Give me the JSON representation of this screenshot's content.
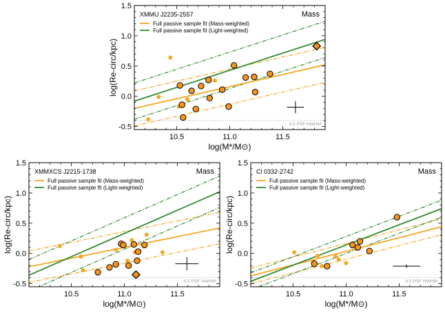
{
  "colors": {
    "mass": "#F5A623",
    "light": "#2E8B2E",
    "marker_fill": "#F7941D",
    "psf_line": "#bbbbbb"
  },
  "chart_data": [
    {
      "type": "scatter",
      "title": "XMMU J2235-2557",
      "tag": "Mass",
      "xlabel": "log(M*/M⊙)",
      "ylabel": "log(Re-circ/kpc)",
      "xlim": [
        10.1,
        11.9
      ],
      "ylim": [
        -0.55,
        1.5
      ],
      "xticks": [
        "10.5",
        "11.0",
        "11.5"
      ],
      "yticks": [
        "-0.5",
        "0.0",
        "0.5",
        "1.0",
        "1.5"
      ],
      "legend": [
        "Full passive sample fit (Mass-weighted)",
        "Full passive sample fit (Light-weighted)"
      ],
      "psf_label": "0.5 PSF HWHM",
      "psf_y": -0.4,
      "fit_mass": {
        "x": [
          10.1,
          11.9
        ],
        "y": [
          -0.2,
          0.52
        ]
      },
      "fit_mass_band": [
        {
          "x": [
            10.1,
            11.9
          ],
          "y": [
            -0.49,
            0.23
          ]
        },
        {
          "x": [
            10.1,
            11.9
          ],
          "y": [
            0.09,
            0.81
          ]
        }
      ],
      "fit_light": {
        "x": [
          10.1,
          11.9
        ],
        "y": [
          -0.08,
          0.94
        ]
      },
      "fit_light_band": [
        {
          "x": [
            10.1,
            11.9
          ],
          "y": [
            -0.38,
            0.64
          ]
        },
        {
          "x": [
            10.1,
            11.9
          ],
          "y": [
            0.22,
            1.24
          ]
        }
      ],
      "small_points": {
        "x": [
          10.23,
          10.33,
          10.44,
          10.52,
          10.6,
          10.86
        ],
        "y": [
          -0.38,
          -0.01,
          0.64,
          -0.17,
          -0.05,
          0.26
        ]
      },
      "circle_points": {
        "x": [
          10.53,
          10.55,
          10.56,
          10.64,
          10.68,
          10.73,
          10.8,
          10.81,
          10.93,
          10.99,
          11.04,
          11.15,
          11.23,
          11.24,
          11.38
        ],
        "y": [
          0.18,
          -0.14,
          -0.35,
          0.09,
          -0.21,
          0.17,
          0.27,
          -0.03,
          0.11,
          -0.17,
          0.51,
          0.31,
          0.32,
          0.07,
          0.37
        ]
      },
      "diamond_points": {
        "x": [
          11.82
        ],
        "y": [
          0.83
        ]
      },
      "error_cross": {
        "x": 11.62,
        "y": -0.18,
        "xerr": 0.08,
        "yerr": 0.1
      }
    },
    {
      "type": "scatter",
      "title": "XMMXCS J2215-1738",
      "tag": "Mass",
      "xlabel": "log(M*/M⊙)",
      "ylabel": "log(Re-circ/kpc)",
      "xlim": [
        10.1,
        11.9
      ],
      "ylim": [
        -0.55,
        1.5
      ],
      "xticks": [
        "10.5",
        "11.0",
        "11.5"
      ],
      "yticks": [
        "-0.5",
        "0.0",
        "0.5",
        "1.0",
        "1.5"
      ],
      "legend": [
        "Full passive sample fit (Mass-weighted)",
        "Full passive sample fit (Light-weighted)"
      ],
      "psf_label": "0.5 PSF HWHM",
      "psf_y": -0.4,
      "fit_mass": {
        "x": [
          10.1,
          11.9
        ],
        "y": [
          -0.22,
          0.42
        ]
      },
      "fit_mass_band": [
        {
          "x": [
            10.1,
            11.9
          ],
          "y": [
            -0.48,
            0.16
          ]
        },
        {
          "x": [
            10.1,
            11.9
          ],
          "y": [
            0.04,
            0.68
          ]
        }
      ],
      "fit_light": {
        "x": [
          10.1,
          11.9
        ],
        "y": [
          -0.36,
          1.02
        ]
      },
      "fit_light_band": [
        {
          "x": [
            10.1,
            11.9
          ],
          "y": [
            -0.62,
            0.76
          ]
        },
        {
          "x": [
            10.1,
            11.9
          ],
          "y": [
            -0.1,
            1.28
          ]
        }
      ],
      "small_points": {
        "x": [
          10.39,
          10.59,
          10.61,
          10.92,
          11.0,
          11.03,
          11.07,
          11.1,
          11.21,
          11.36
        ],
        "y": [
          0.12,
          -0.05,
          -0.28,
          0.06,
          0.13,
          -0.12,
          0.22,
          0.02,
          0.31,
          0.02
        ]
      },
      "circle_points": {
        "x": [
          10.75,
          10.86,
          10.92,
          10.97,
          10.99,
          11.04,
          11.09,
          11.12,
          11.13,
          11.19
        ],
        "y": [
          -0.31,
          -0.23,
          -0.18,
          0.16,
          0.14,
          -0.2,
          0.15,
          -0.12,
          0.03,
          0.14
        ]
      },
      "diamond_points": {
        "x": [
          11.11
        ],
        "y": [
          -0.35
        ]
      },
      "error_cross": {
        "x": 11.59,
        "y": -0.17,
        "xerr": 0.11,
        "yerr": 0.11
      }
    },
    {
      "type": "scatter",
      "title": "Cl 0332-2742",
      "tag": "Mass",
      "xlabel": "log(M*/M⊙)",
      "ylabel": "log(Re-circ/kpc)",
      "xlim": [
        10.1,
        11.9
      ],
      "ylim": [
        -0.55,
        1.5
      ],
      "xticks": [
        "10.5",
        "11.0",
        "11.5"
      ],
      "yticks": [
        "-0.5",
        "0.0",
        "0.5",
        "1.0",
        "1.5"
      ],
      "legend": [
        "Full passive sample fit (Mass-weighted)",
        "Full passive sample fit (Light-weighted)"
      ],
      "psf_label": "0.5 PSF HWHM",
      "psf_y": -0.4,
      "fit_mass": {
        "x": [
          10.1,
          11.9
        ],
        "y": [
          -0.37,
          0.44
        ]
      },
      "fit_mass_band": [
        {
          "x": [
            10.1,
            11.9
          ],
          "y": [
            -0.5,
            0.31
          ]
        },
        {
          "x": [
            10.1,
            11.9
          ],
          "y": [
            -0.24,
            0.57
          ]
        }
      ],
      "fit_light": {
        "x": [
          10.1,
          11.9
        ],
        "y": [
          -0.46,
          0.74
        ]
      },
      "fit_light_band": [
        {
          "x": [
            10.1,
            11.9
          ],
          "y": [
            -0.6,
            0.6
          ]
        },
        {
          "x": [
            10.1,
            11.9
          ],
          "y": [
            -0.32,
            0.88
          ]
        }
      ],
      "small_points": {
        "x": [
          10.51,
          10.69,
          10.73,
          10.77,
          10.9,
          10.93,
          11.0
        ],
        "y": [
          0.02,
          -0.14,
          -0.04,
          -0.21,
          -0.05,
          -0.1,
          -0.16
        ]
      },
      "circle_points": {
        "x": [
          10.7,
          10.82,
          11.06,
          11.11,
          11.13,
          11.22,
          11.48
        ],
        "y": [
          -0.17,
          -0.21,
          0.14,
          0.1,
          0.2,
          0.04,
          0.6
        ]
      },
      "diamond_points": {
        "x": [],
        "y": []
      },
      "error_cross": {
        "x": 11.57,
        "y": -0.21,
        "xerr": 0.13,
        "yerr": 0.03
      }
    }
  ]
}
